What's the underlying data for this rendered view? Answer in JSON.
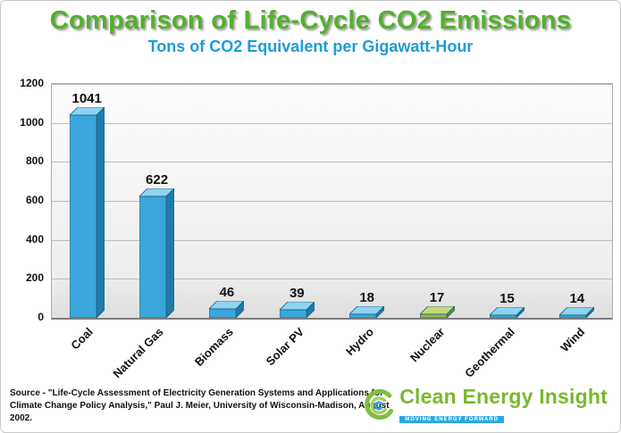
{
  "chart_data": {
    "type": "bar",
    "title": "Comparison of Life-Cycle CO2 Emissions",
    "subtitle": "Tons of CO2 Equivalent per Gigawatt-Hour",
    "categories": [
      "Coal",
      "Natural Gas",
      "Biomass",
      "Solar PV",
      "Hydro",
      "Nuclear",
      "Geothermal",
      "Wind"
    ],
    "values": [
      1041,
      622,
      46,
      39,
      18,
      17,
      15,
      14
    ],
    "xlabel": "",
    "ylabel": "",
    "ylim": [
      0,
      1200
    ],
    "yticks": [
      0,
      200,
      400,
      600,
      800,
      1000,
      1200
    ],
    "grid": true,
    "legend": false,
    "highlight_index": 5,
    "colors": {
      "bar_front": "#3AA7DC",
      "bar_top": "#8ED3EF",
      "bar_side": "#1E7BAB",
      "highlight_front": "#90BA3E",
      "highlight_top": "#C3DB7E",
      "highlight_side": "#67892C",
      "outline": "#1C5E7E"
    }
  },
  "source": {
    "line1": "Source - \"Life-Cycle Assessment of Electricity Generation Systems and Applications for",
    "line2": "Climate Change Policy Analysis,\" Paul J. Meier, University of Wisconsin-Madison, August 2002."
  },
  "logo": {
    "name": "Clean Energy Insight",
    "tagline": "MOVING ENERGY FORWARD"
  }
}
